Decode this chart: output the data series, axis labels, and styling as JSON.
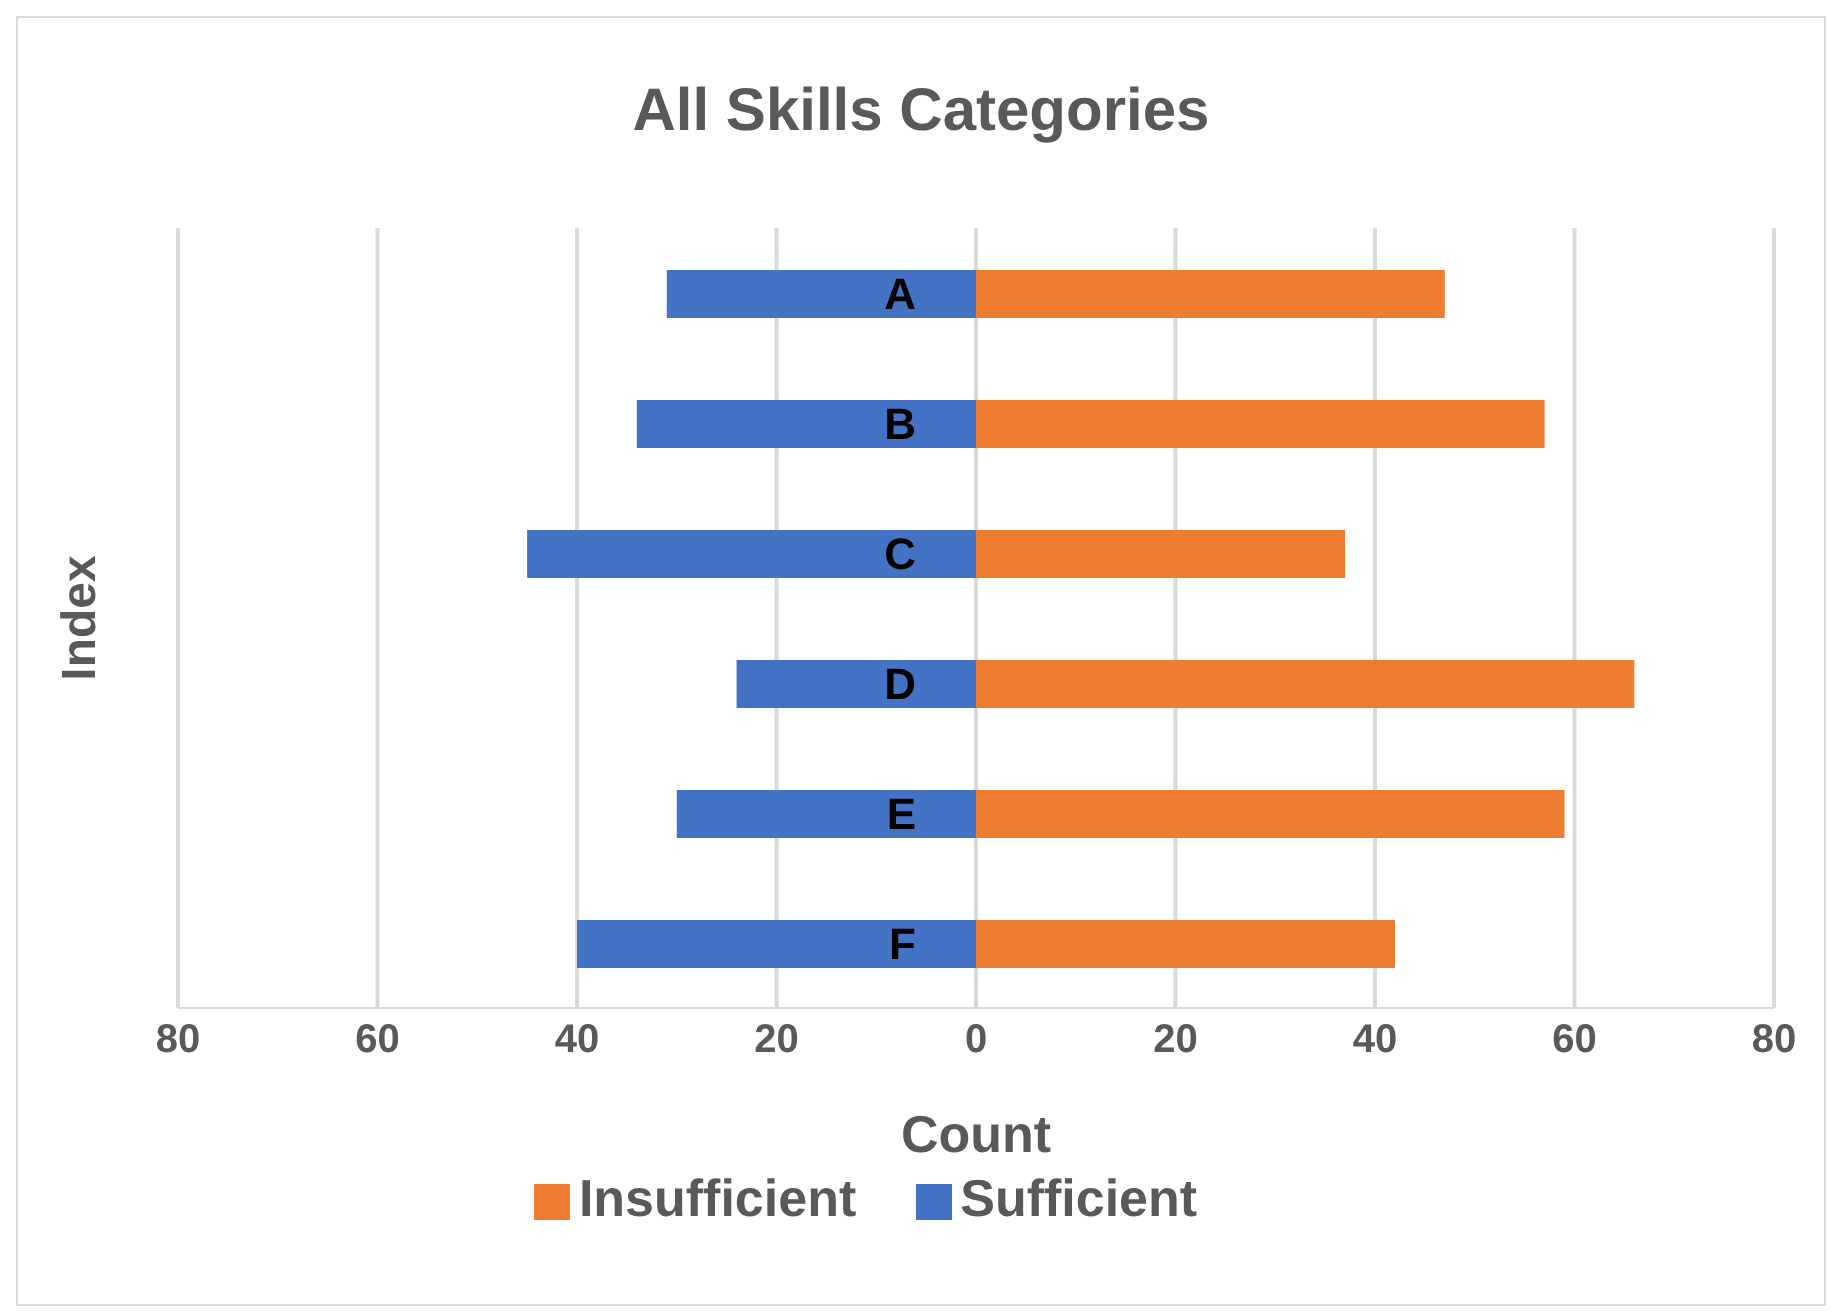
{
  "chart_data": {
    "type": "bar",
    "orientation": "horizontal",
    "stacked": true,
    "title": "All Skills Categories",
    "xlabel": "Count",
    "ylabel": "Index",
    "categories": [
      "A",
      "B",
      "C",
      "D",
      "E",
      "F"
    ],
    "series": [
      {
        "name": "Sufficient",
        "color": "#4472c4",
        "values": [
          -31,
          -34,
          -45,
          -24,
          -30,
          -40
        ]
      },
      {
        "name": "Insufficient",
        "color": "#ed7d31",
        "values": [
          47,
          57,
          37,
          66,
          59,
          42
        ]
      }
    ],
    "xlim": [
      -80,
      80
    ],
    "xticks": [
      {
        "value": -80,
        "label": "80"
      },
      {
        "value": -60,
        "label": "60"
      },
      {
        "value": -40,
        "label": "40"
      },
      {
        "value": -20,
        "label": "20"
      },
      0,
      20,
      40,
      60,
      80
    ],
    "grid": "x",
    "legend": "bottom"
  }
}
